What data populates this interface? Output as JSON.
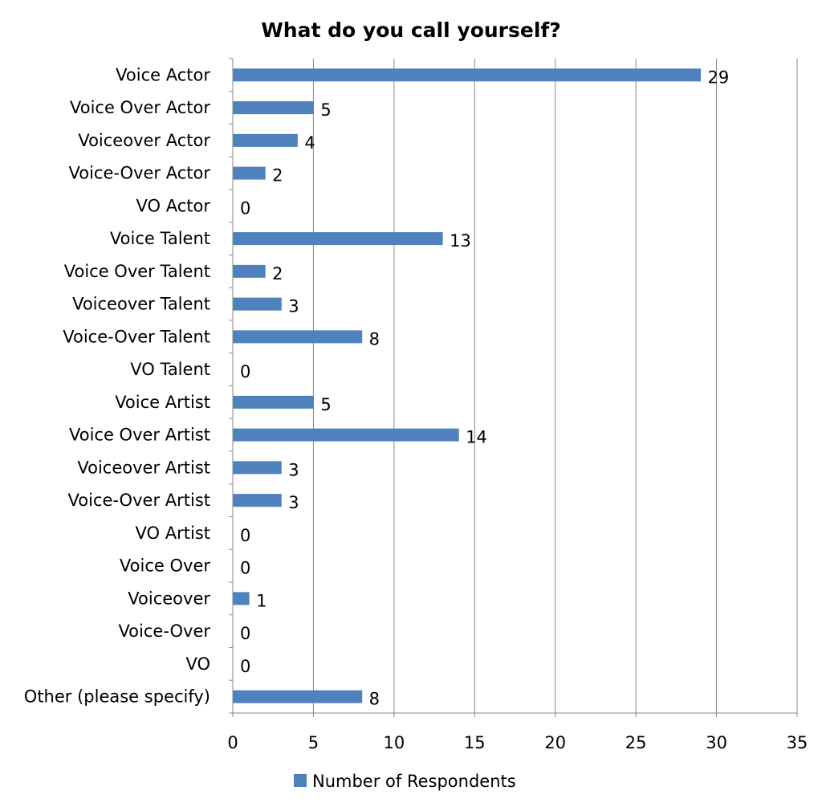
{
  "chart_data": {
    "type": "bar",
    "orientation": "horizontal",
    "title": "What do you call yourself?",
    "xlabel": "",
    "ylabel": "",
    "categories": [
      "Voice Actor",
      "Voice Over Actor",
      "Voiceover Actor",
      "Voice-Over Actor",
      "VO Actor",
      "Voice Talent",
      "Voice Over Talent",
      "Voiceover Talent",
      "Voice-Over Talent",
      "VO Talent",
      "Voice Artist",
      "Voice Over Artist",
      "Voiceover Artist",
      "Voice-Over Artist",
      "VO Artist",
      "Voice Over",
      "Voiceover",
      "Voice-Over",
      "VO",
      "Other (please specify)"
    ],
    "series": [
      {
        "name": "Number of Respondents",
        "color": "#4f81bd",
        "values": [
          29,
          5,
          4,
          2,
          0,
          13,
          2,
          3,
          8,
          0,
          5,
          14,
          3,
          3,
          0,
          0,
          1,
          0,
          0,
          8
        ]
      }
    ],
    "xlim": [
      0,
      35
    ],
    "xticks": [
      0,
      5,
      10,
      15,
      20,
      25,
      30,
      35
    ],
    "grid": "vertical",
    "legend": "bottom",
    "data_labels": true
  }
}
